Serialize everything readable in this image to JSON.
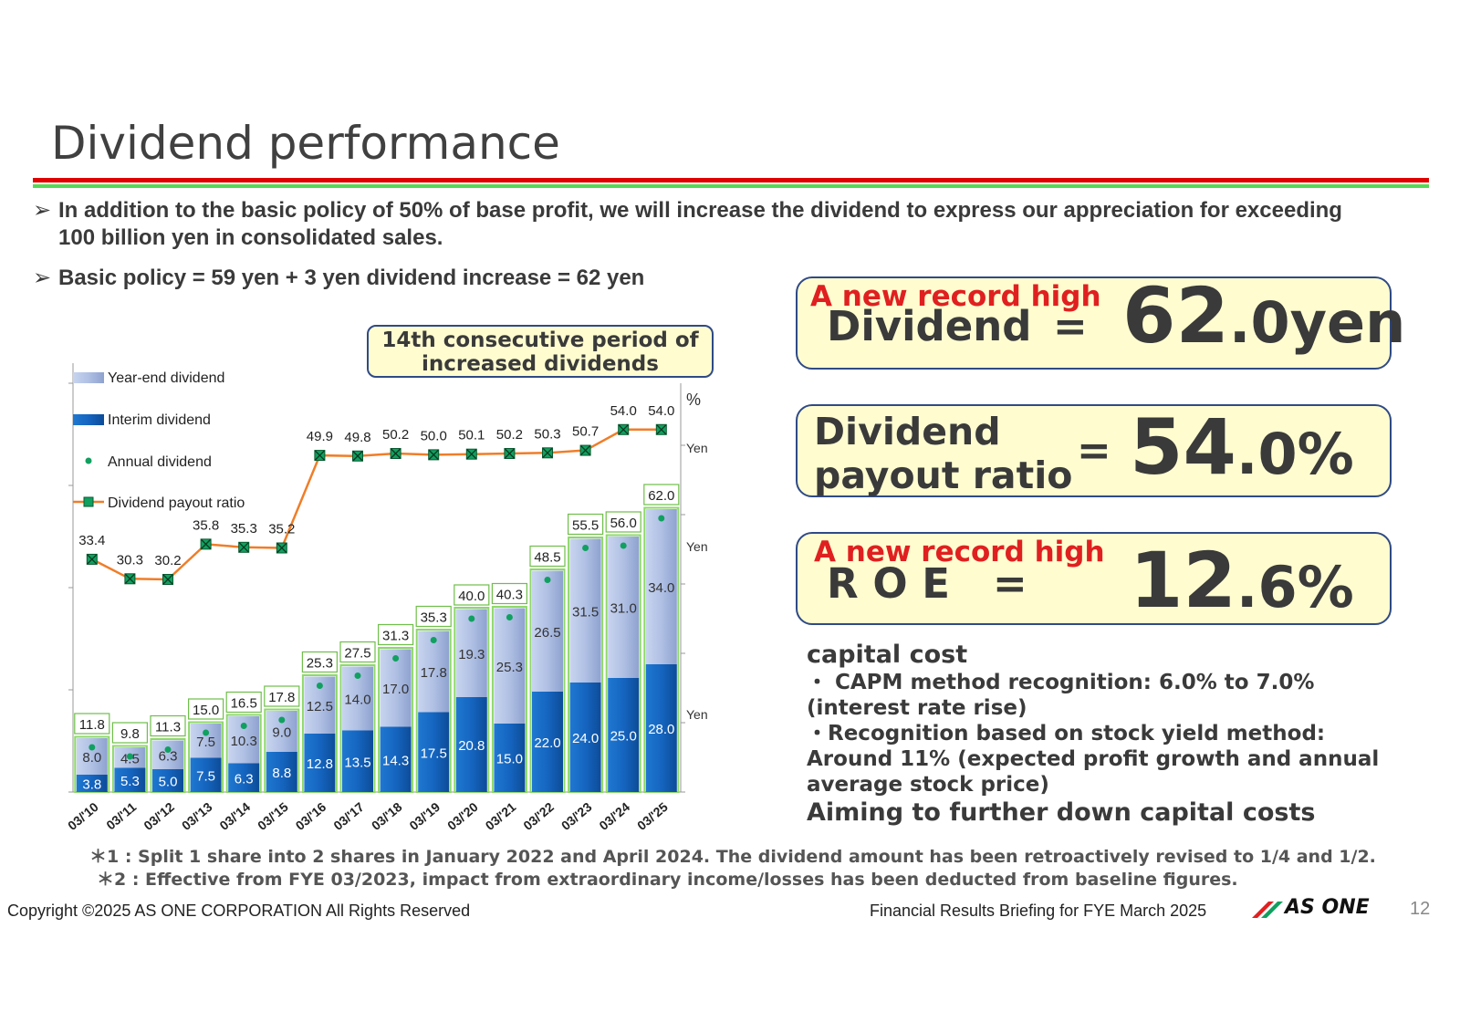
{
  "title": "Dividend performance",
  "bullets": {
    "arrow": "➢",
    "b1": "In addition to the basic policy of 50% of base profit, we will increase the dividend to express our appreciation for exceeding 100 billion yen in consolidated sales.",
    "b2": "Basic policy = 59 yen + 3 yen dividend increase = 62 yen"
  },
  "callout": {
    "line1": "14th consecutive period of",
    "line2": "increased dividends"
  },
  "cards": {
    "dividend": {
      "record": "A new record high",
      "label": "Dividend",
      "eq": "=",
      "int": "62",
      "dec": ".0yen"
    },
    "payout": {
      "label1": "Dividend",
      "label2": "payout ratio",
      "eq": "=",
      "int": "54",
      "dec": ".0%"
    },
    "roe": {
      "record": "A new record high",
      "label": "R O E",
      "eq": "=",
      "int": "12",
      "dec": ".6%"
    }
  },
  "capital_cost": {
    "heading": "capital cost",
    "l1": "・ CAPM method recognition: 6.0% to 7.0%",
    "l2": "(interest rate rise)",
    "l3": "・Recognition based on stock yield method:",
    "l4": "Around 11% (expected profit growth and annual",
    "l5": "average stock price)",
    "footer": "Aiming to further down capital costs"
  },
  "notes": {
    "n1": "＊1 : Split 1 share into 2 shares in January 2022 and April 2024. The dividend amount has been retroactively revised to 1/4 and 1/2.",
    "n2": "＊2 : Effective from FYE 03/2023, impact from extraordinary income/losses has been deducted from baseline figures."
  },
  "footer": {
    "copyright": "Copyright ©2025 AS ONE CORPORATION All Rights Reserved",
    "briefing": "Financial Results Briefing for FYE March 2025",
    "logo": "AS ONE",
    "page": "12"
  },
  "colors": {
    "interim": "#1565c0",
    "yearend": "#b4c4e6",
    "payout_line": "#f07d28",
    "dot": "#10a060",
    "accent_red": "#e02020"
  },
  "chart_data": {
    "type": "bar",
    "stacked": true,
    "categories": [
      "03/'10",
      "03/'11",
      "03/'12",
      "03/'13",
      "03/'14",
      "03/'15",
      "03/'16",
      "03/'17",
      "03/'18",
      "03/'19",
      "03/'20",
      "03/'21",
      "03/'22",
      "03/'23",
      "03/'24",
      "03/'25"
    ],
    "series": [
      {
        "name": "Interim dividend",
        "values": [
          3.8,
          5.3,
          5.0,
          7.5,
          6.3,
          8.8,
          12.8,
          13.5,
          14.3,
          17.5,
          20.8,
          15.0,
          22.0,
          24.0,
          25.0,
          28.0
        ]
      },
      {
        "name": "Year-end dividend",
        "values": [
          8.0,
          4.5,
          6.3,
          7.5,
          10.3,
          9.0,
          12.5,
          14.0,
          17.0,
          17.8,
          19.3,
          25.3,
          26.5,
          31.5,
          31.0,
          34.0
        ]
      }
    ],
    "annual": {
      "name": "Annual dividend",
      "values": [
        11.8,
        9.8,
        11.3,
        15.0,
        16.5,
        17.8,
        25.3,
        27.5,
        31.3,
        35.3,
        40.0,
        40.3,
        48.5,
        55.5,
        56.0,
        62.0
      ]
    },
    "payout": {
      "name": "Dividend payout ratio",
      "unit": "%",
      "values": [
        33.4,
        30.3,
        30.2,
        35.8,
        35.3,
        35.2,
        49.9,
        49.8,
        50.2,
        50.0,
        50.1,
        50.2,
        50.3,
        50.7,
        54.0,
        54.0
      ]
    },
    "ylim": [
      0,
      70
    ],
    "unit_labels": {
      "pct": "%",
      "yen1": "Yen",
      "yen2": "Yen",
      "yen3": "Yen"
    },
    "legend": [
      "Year-end dividend",
      "Interim dividend",
      "Annual dividend",
      "Dividend payout ratio"
    ]
  }
}
